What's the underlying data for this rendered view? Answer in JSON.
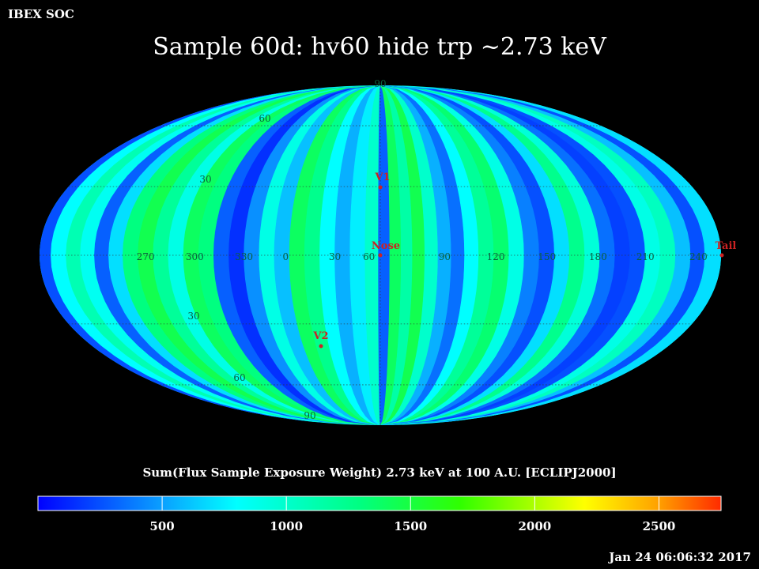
{
  "header": {
    "corner_label": "IBEX SOC",
    "title": "Sample 60d: hv60 hide trp ~2.73 keV"
  },
  "footer": {
    "timestamp": "Jan 24 06:06:32 2017"
  },
  "map": {
    "projection": "mollweide",
    "coordinate_frame": "ECLIPJ2000",
    "grid_labels": [
      {
        "text": "90",
        "lon": null,
        "lat": 90
      },
      {
        "text": "60",
        "lon": null,
        "lat": 60
      },
      {
        "text": "30",
        "lon": null,
        "lat": 30
      },
      {
        "text": "30",
        "lon": null,
        "lat": -30
      },
      {
        "text": "60",
        "lon": null,
        "lat": -60
      },
      {
        "text": "90",
        "lon": null,
        "lat": -90
      },
      {
        "text": "60",
        "lon": -6,
        "lat": 0
      },
      {
        "text": "30",
        "lon": -24,
        "lat": 0
      },
      {
        "text": "0",
        "lon": -50,
        "lat": 0
      },
      {
        "text": "330",
        "lon": -72,
        "lat": 0
      },
      {
        "text": "300",
        "lon": -98,
        "lat": 0
      },
      {
        "text": "270",
        "lon": -124,
        "lat": 0
      },
      {
        "text": "240",
        "lon": 168,
        "lat": 0
      },
      {
        "text": "210",
        "lon": 140,
        "lat": 0
      },
      {
        "text": "180",
        "lon": 115,
        "lat": 0
      },
      {
        "text": "150",
        "lon": 88,
        "lat": 0
      },
      {
        "text": "120",
        "lon": 61,
        "lat": 0
      },
      {
        "text": "90",
        "lon": 34,
        "lat": 0
      }
    ],
    "markers": [
      {
        "name": "V1",
        "color": "#cc2222"
      },
      {
        "name": "Nose",
        "color": "#cc2222"
      },
      {
        "name": "Tail",
        "color": "#cc2222"
      },
      {
        "name": "V2",
        "color": "#cc2222"
      }
    ],
    "bands": [
      {
        "lon": -178,
        "value": 250
      },
      {
        "lon": -170,
        "value": 800
      },
      {
        "lon": -162,
        "value": 1100
      },
      {
        "lon": -155,
        "value": 850
      },
      {
        "lon": -147,
        "value": 300
      },
      {
        "lon": -140,
        "value": 700
      },
      {
        "lon": -132,
        "value": 1300
      },
      {
        "lon": -124,
        "value": 1450
      },
      {
        "lon": -116,
        "value": 1200
      },
      {
        "lon": -108,
        "value": 900
      },
      {
        "lon": -100,
        "value": 1400
      },
      {
        "lon": -92,
        "value": 1300
      },
      {
        "lon": -84,
        "value": 300
      },
      {
        "lon": -76,
        "value": 150
      },
      {
        "lon": -68,
        "value": 450
      },
      {
        "lon": -60,
        "value": 900
      },
      {
        "lon": -52,
        "value": 600
      },
      {
        "lon": -44,
        "value": 1400
      },
      {
        "lon": -36,
        "value": 1250
      },
      {
        "lon": -28,
        "value": 800
      },
      {
        "lon": -20,
        "value": 550
      },
      {
        "lon": -12,
        "value": 750
      },
      {
        "lon": -4,
        "value": 1000
      },
      {
        "lon": 2,
        "value": 300
      },
      {
        "lon": 8,
        "value": 1400
      },
      {
        "lon": 14,
        "value": 1150
      },
      {
        "lon": 20,
        "value": 1450
      },
      {
        "lon": 27,
        "value": 1000
      },
      {
        "lon": 34,
        "value": 550
      },
      {
        "lon": 41,
        "value": 350
      },
      {
        "lon": 48,
        "value": 800
      },
      {
        "lon": 56,
        "value": 1200
      },
      {
        "lon": 64,
        "value": 1350
      },
      {
        "lon": 72,
        "value": 900
      },
      {
        "lon": 80,
        "value": 400
      },
      {
        "lon": 88,
        "value": 250
      },
      {
        "lon": 96,
        "value": 700
      },
      {
        "lon": 104,
        "value": 1250
      },
      {
        "lon": 112,
        "value": 950
      },
      {
        "lon": 120,
        "value": 350
      },
      {
        "lon": 128,
        "value": 200
      },
      {
        "lon": 136,
        "value": 250
      },
      {
        "lon": 144,
        "value": 900
      },
      {
        "lon": 152,
        "value": 1050
      },
      {
        "lon": 160,
        "value": 600
      },
      {
        "lon": 168,
        "value": 250
      },
      {
        "lon": 175,
        "value": 700
      }
    ]
  },
  "colorbar": {
    "title": "Sum(Flux Sample Exposure Weight)  2.73 keV at 100 A.U. [ECLIPJ2000]",
    "min": 0,
    "max": 2750,
    "ticks": [
      500,
      1000,
      1500,
      2000,
      2500
    ],
    "stops": [
      {
        "value": 0,
        "color": "#0000ff"
      },
      {
        "value": 500,
        "color": "#0aa0ff"
      },
      {
        "value": 800,
        "color": "#00ffff"
      },
      {
        "value": 1300,
        "color": "#00ff80"
      },
      {
        "value": 1700,
        "color": "#30ff00"
      },
      {
        "value": 2200,
        "color": "#ffff00"
      },
      {
        "value": 2500,
        "color": "#ffa000"
      },
      {
        "value": 2750,
        "color": "#ff2a00"
      }
    ]
  }
}
